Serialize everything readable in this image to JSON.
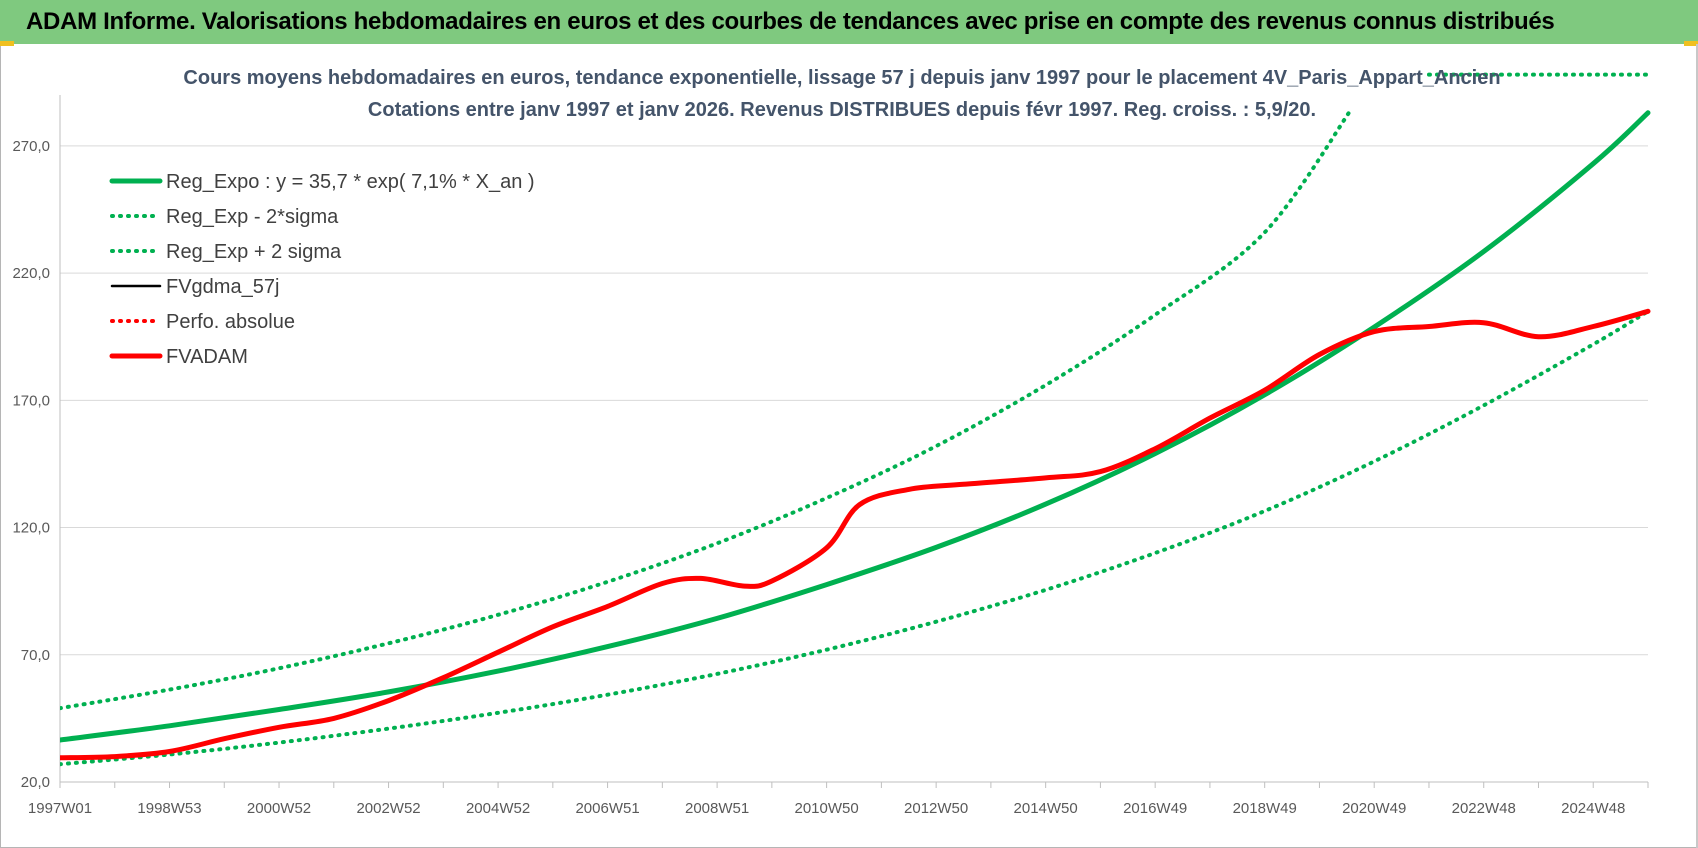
{
  "banner": {
    "title": "ADAM Informe. Valorisations hebdomadaires en euros et des courbes de tendances avec prise en compte des revenus connus distribués"
  },
  "colors": {
    "green": "#00b050",
    "red": "#ff0000",
    "black": "#000000",
    "grid": "#d9d9d9",
    "banner": "#7fc97f"
  },
  "chart_data": {
    "type": "line",
    "title": "Cours moyens hebdomadaires en euros, tendance exponentielle, lissage 57 j depuis janv 1997  pour le placement 4V_Paris_Appart_Ancien",
    "subtitle": "Cotations entre janv 1997 et janv 2026. Revenus DISTRIBUES depuis févr 1997. Reg. croiss. : 5,9/20.",
    "xlabel": "",
    "ylabel": "",
    "x_range": [
      1997.0,
      2026.0
    ],
    "ylim": [
      20,
      290
    ],
    "y_ticks": [
      20,
      70,
      120,
      170,
      220,
      270
    ],
    "y_tick_labels": [
      "20,0",
      "70,0",
      "120,0",
      "170,0",
      "220,0",
      "270,0"
    ],
    "x_ticks": [
      {
        "x": 1997.0,
        "label": "1997W01"
      },
      {
        "x": 1999.0,
        "label": "1998W53"
      },
      {
        "x": 2001.0,
        "label": "2000W52"
      },
      {
        "x": 2003.0,
        "label": "2002W52"
      },
      {
        "x": 2005.0,
        "label": "2004W52"
      },
      {
        "x": 2007.0,
        "label": "2006W51"
      },
      {
        "x": 2009.0,
        "label": "2008W51"
      },
      {
        "x": 2011.0,
        "label": "2010W50"
      },
      {
        "x": 2013.0,
        "label": "2012W50"
      },
      {
        "x": 2015.0,
        "label": "2014W50"
      },
      {
        "x": 2017.0,
        "label": "2016W49"
      },
      {
        "x": 2019.0,
        "label": "2018W49"
      },
      {
        "x": 2021.0,
        "label": "2020W49"
      },
      {
        "x": 2023.0,
        "label": "2022W48"
      },
      {
        "x": 2025.0,
        "label": "2024W48"
      }
    ],
    "legend_position": "top-left",
    "series": [
      {
        "name": "Reg_Expo : y = 35,7 * exp( 7,1% *  X_an )",
        "style": "solid-thick",
        "color": "green",
        "points": [
          [
            1997,
            36.5
          ],
          [
            1999,
            42.1
          ],
          [
            2001,
            48.5
          ],
          [
            2003,
            55.4
          ],
          [
            2005,
            63.6
          ],
          [
            2007,
            73.2
          ],
          [
            2009,
            84.3
          ],
          [
            2011,
            97.6
          ],
          [
            2013,
            112.2
          ],
          [
            2015,
            129.2
          ],
          [
            2017,
            149.1
          ],
          [
            2019,
            172.2
          ],
          [
            2021,
            198.8
          ],
          [
            2023,
            228.5
          ],
          [
            2025,
            263.0
          ],
          [
            2026,
            283.0
          ]
        ]
      },
      {
        "name": "Reg_Exp - 2*sigma",
        "style": "dotted",
        "color": "green",
        "points": [
          [
            1997,
            27.0
          ],
          [
            1999,
            30.8
          ],
          [
            2001,
            35.5
          ],
          [
            2003,
            41.0
          ],
          [
            2005,
            47.2
          ],
          [
            2007,
            54.3
          ],
          [
            2009,
            62.5
          ],
          [
            2011,
            72.0
          ],
          [
            2013,
            83.0
          ],
          [
            2015,
            95.5
          ],
          [
            2017,
            110.0
          ],
          [
            2019,
            126.5
          ],
          [
            2021,
            146.0
          ],
          [
            2023,
            168.0
          ],
          [
            2025,
            192.0
          ],
          [
            2026,
            205.0
          ]
        ]
      },
      {
        "name": "Reg_Exp + 2 sigma",
        "style": "dotted",
        "color": "green",
        "points": [
          [
            1997,
            49.0
          ],
          [
            1999,
            56.3
          ],
          [
            2001,
            64.7
          ],
          [
            2003,
            74.5
          ],
          [
            2005,
            85.7
          ],
          [
            2007,
            98.7
          ],
          [
            2009,
            113.8
          ],
          [
            2011,
            131.6
          ],
          [
            2013,
            152.0
          ],
          [
            2015,
            176.0
          ],
          [
            2017,
            203.6
          ],
          [
            2019,
            236.0
          ],
          [
            2020.6,
            285.0
          ]
        ],
        "segment2": {
          "x_start": 2022.0,
          "x_end": 2026.0,
          "y": 298.0
        }
      },
      {
        "name": "FVgdma_57j",
        "style": "solid",
        "color": "black",
        "points": [
          [
            1997,
            29.5
          ],
          [
            1998,
            30.0
          ],
          [
            1999,
            32.0
          ],
          [
            2000,
            37.0
          ],
          [
            2001,
            41.5
          ],
          [
            2002,
            45.0
          ],
          [
            2003,
            52.0
          ],
          [
            2004,
            61.0
          ],
          [
            2005,
            71.0
          ],
          [
            2006,
            81.0
          ],
          [
            2007,
            89.0
          ],
          [
            2008,
            98.0
          ],
          [
            2008.7,
            100.0
          ],
          [
            2009.5,
            97.0
          ],
          [
            2010,
            99.0
          ],
          [
            2011,
            112.0
          ],
          [
            2011.6,
            129.0
          ],
          [
            2012.5,
            135.0
          ],
          [
            2013.5,
            137.0
          ],
          [
            2015,
            139.5
          ],
          [
            2016,
            142.0
          ],
          [
            2017,
            151.0
          ],
          [
            2018,
            163.0
          ],
          [
            2019,
            174.0
          ],
          [
            2020,
            188.0
          ],
          [
            2021,
            197.0
          ],
          [
            2022,
            199.0
          ],
          [
            2023,
            200.5
          ],
          [
            2024,
            195.0
          ],
          [
            2025,
            199.0
          ],
          [
            2026,
            205.0
          ]
        ]
      },
      {
        "name": "Perfo. absolue",
        "style": "dotted",
        "color": "red",
        "points": []
      },
      {
        "name": "FVADAM",
        "style": "solid-thick",
        "color": "red",
        "points": [
          [
            1997,
            29.5
          ],
          [
            1998,
            30.0
          ],
          [
            1999,
            32.0
          ],
          [
            2000,
            37.0
          ],
          [
            2001,
            41.5
          ],
          [
            2002,
            45.0
          ],
          [
            2003,
            52.0
          ],
          [
            2004,
            61.0
          ],
          [
            2005,
            71.0
          ],
          [
            2006,
            81.0
          ],
          [
            2007,
            89.0
          ],
          [
            2008,
            98.0
          ],
          [
            2008.7,
            100.0
          ],
          [
            2009.5,
            97.0
          ],
          [
            2010,
            99.0
          ],
          [
            2011,
            112.0
          ],
          [
            2011.6,
            129.0
          ],
          [
            2012.5,
            135.0
          ],
          [
            2013.5,
            137.0
          ],
          [
            2015,
            139.5
          ],
          [
            2016,
            142.0
          ],
          [
            2017,
            151.0
          ],
          [
            2018,
            163.0
          ],
          [
            2019,
            174.0
          ],
          [
            2020,
            188.0
          ],
          [
            2021,
            197.0
          ],
          [
            2022,
            199.0
          ],
          [
            2023,
            200.5
          ],
          [
            2024,
            195.0
          ],
          [
            2025,
            199.0
          ],
          [
            2026,
            205.0
          ]
        ]
      }
    ]
  }
}
